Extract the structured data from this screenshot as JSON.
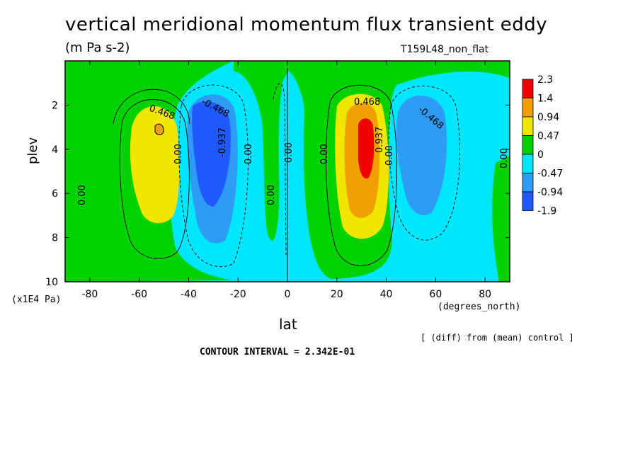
{
  "chart_data": {
    "type": "heatmap",
    "title": "vertical meridional momentum flux transient eddy",
    "units_label": "(m Pa s-2)",
    "run_label": "T159L48_non_flat",
    "xlabel": "lat",
    "ylabel": "plev",
    "x_unit": "(degrees_north)",
    "y_unit": "(x1E4 Pa)",
    "xlim": [
      -90,
      90
    ],
    "ylim": [
      10,
      0
    ],
    "x_ticks": [
      "-80",
      "-60",
      "-40",
      "-20",
      "0",
      "20",
      "40",
      "60",
      "80"
    ],
    "y_ticks": [
      "2",
      "4",
      "6",
      "8",
      "10"
    ],
    "colorbar": {
      "labels": [
        "2.3",
        "1.4",
        "0.94",
        "0.47",
        "0",
        "-0.47",
        "-0.94",
        "-1.9"
      ],
      "colors": [
        "#f00000",
        "#f0a000",
        "#f0e600",
        "#00d200",
        "#00e6ff",
        "#2e9cf5",
        "#1e5aff"
      ]
    },
    "colors": {
      "background_field": "#00d200",
      "negative_field": "#00e6ff",
      "strong_negative": "#2e9cf5",
      "strongest_negative": "#1e5aff",
      "positive_field": "#f0e600",
      "strong_positive": "#f0a000",
      "strongest_positive": "#f00000"
    },
    "contour_labels": [
      "0.468",
      "-0.468",
      "0.00",
      "-0.937",
      "0.937"
    ],
    "features": [
      {
        "lat": -53,
        "plev": 3.6,
        "value": 0.94,
        "sign": "positive"
      },
      {
        "lat": -31,
        "plev": 4.2,
        "value": -1.4,
        "sign": "negative"
      },
      {
        "lat": 32,
        "plev": 3.8,
        "value": 2.0,
        "sign": "positive"
      },
      {
        "lat": 53,
        "plev": 4.2,
        "value": -0.94,
        "sign": "negative"
      }
    ],
    "contour_interval_note": "CONTOUR INTERVAL = 2.342E-01",
    "diff_note": "[ (diff) from (mean) control ]"
  }
}
